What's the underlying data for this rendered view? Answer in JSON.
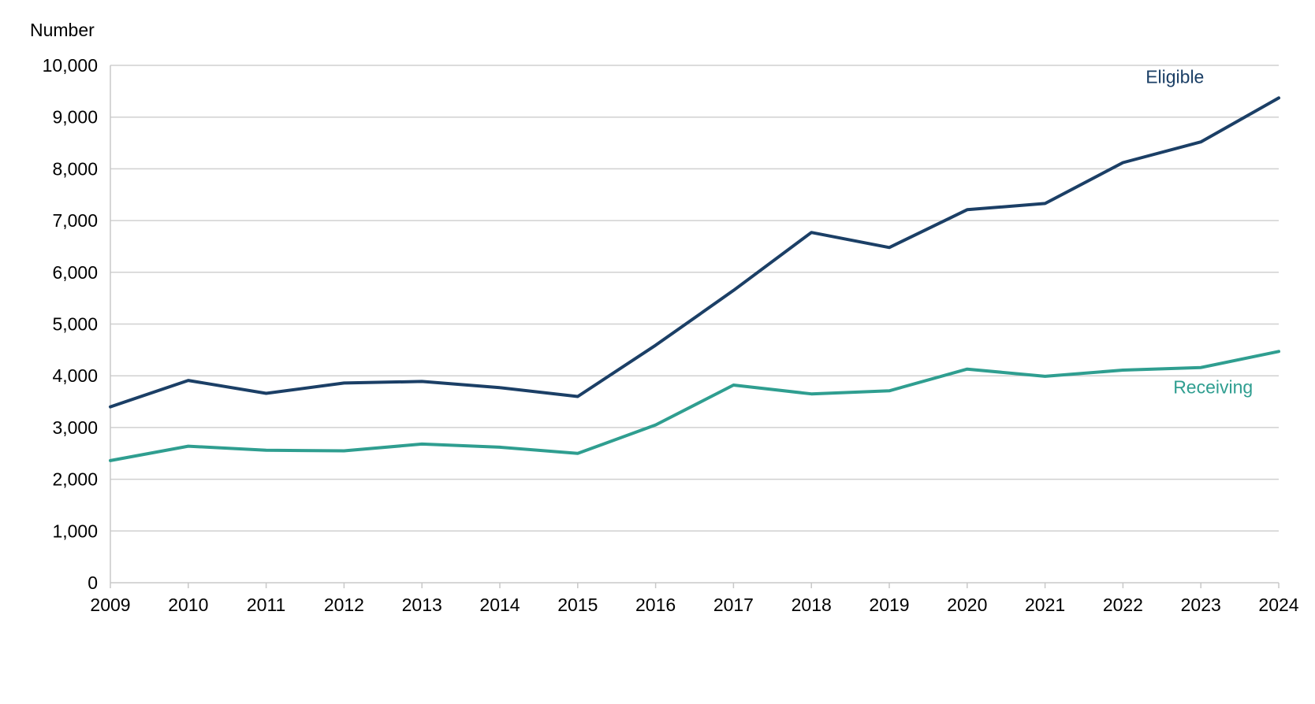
{
  "chart_data": {
    "type": "line",
    "title": "",
    "ylabel": "Number",
    "xlabel": "",
    "x": [
      "2009",
      "2010",
      "2011",
      "2012",
      "2013",
      "2014",
      "2015",
      "2016",
      "2017",
      "2018",
      "2019",
      "2020",
      "2021",
      "2022",
      "2023",
      "2024"
    ],
    "ylim": [
      0,
      10000
    ],
    "yticks": [
      0,
      1000,
      2000,
      3000,
      4000,
      5000,
      6000,
      7000,
      8000,
      9000,
      10000
    ],
    "ytick_labels": [
      "0",
      "1,000",
      "2,000",
      "3,000",
      "4,000",
      "5,000",
      "6,000",
      "7,000",
      "8,000",
      "9,000",
      "10,000"
    ],
    "grid": true,
    "series": [
      {
        "name": "Eligible",
        "color": "#1b3f66",
        "values": [
          3400,
          3910,
          3660,
          3860,
          3890,
          3770,
          3600,
          4590,
          5650,
          6770,
          6480,
          7210,
          7330,
          8120,
          8520,
          9370
        ]
      },
      {
        "name": "Receiving",
        "color": "#2f9e90",
        "values": [
          2360,
          2640,
          2560,
          2550,
          2680,
          2620,
          2500,
          3050,
          3820,
          3650,
          3710,
          4130,
          3990,
          4110,
          4160,
          4470
        ]
      }
    ]
  }
}
